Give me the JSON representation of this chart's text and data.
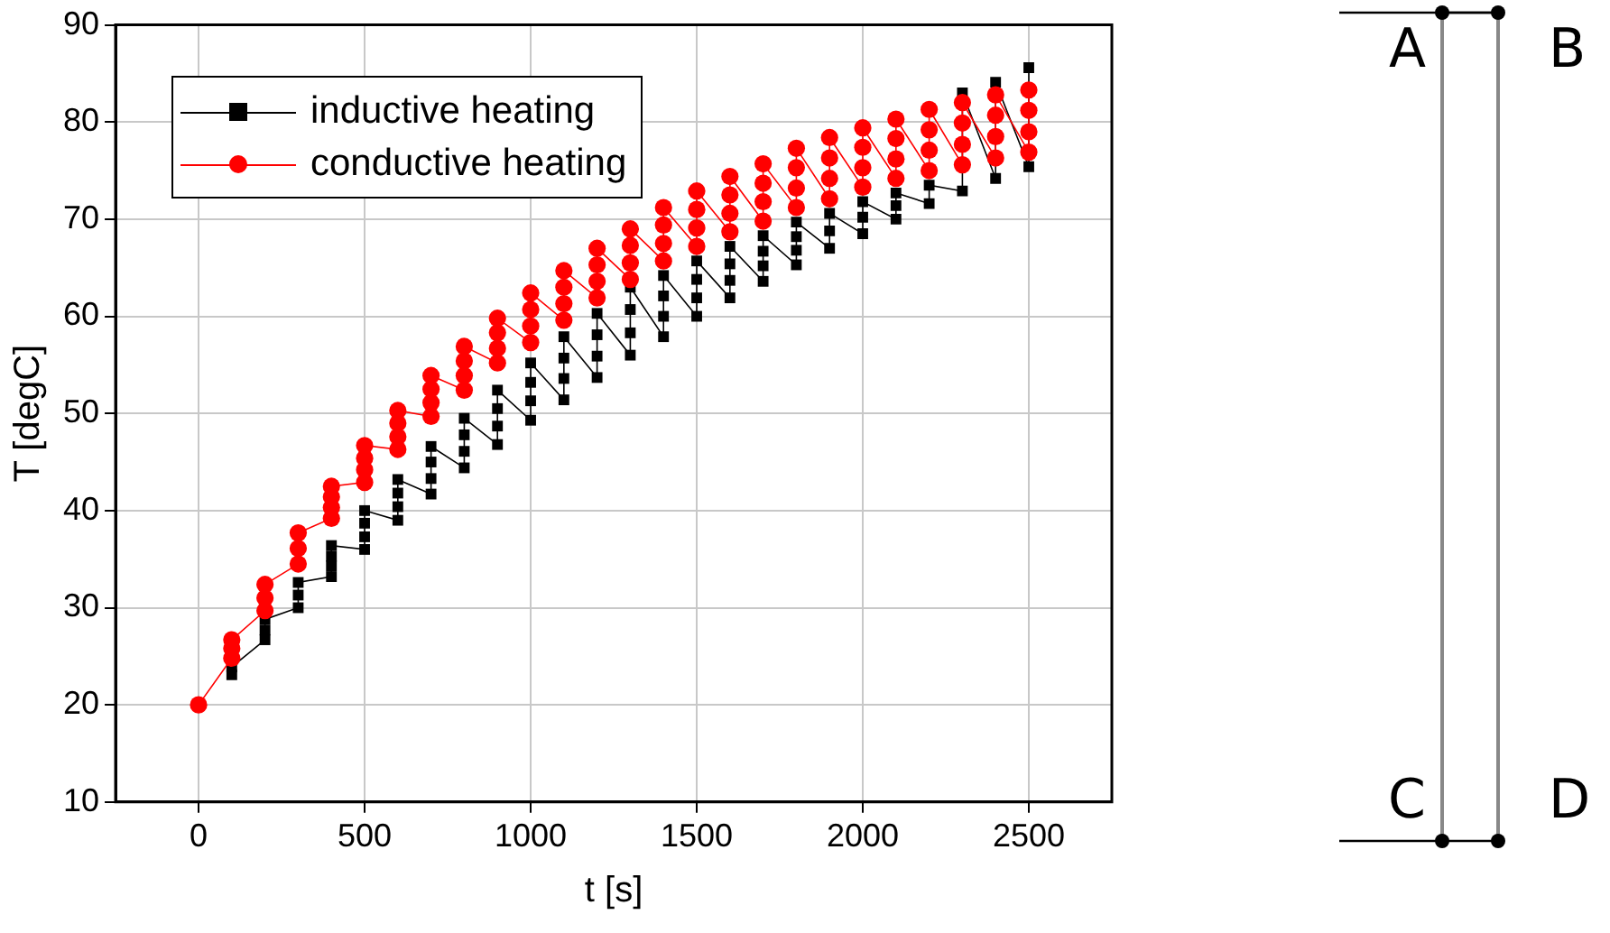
{
  "chart_data": {
    "type": "line",
    "xlabel": "t [s]",
    "ylabel": "T [degC]",
    "xlim": [
      -250,
      2750
    ],
    "xticks": [
      0,
      500,
      1000,
      1500,
      2000,
      2500
    ],
    "ylim": [
      10,
      90
    ],
    "yticks": [
      10,
      20,
      30,
      40,
      50,
      60,
      70,
      80,
      90
    ],
    "grid": true,
    "legend": "top left",
    "line_style": "solid",
    "annotations": [
      "A",
      "B",
      "C",
      "D"
    ],
    "series": [
      {
        "name": "inductive heating",
        "color": "#000000",
        "marker": "square",
        "x": [
          100,
          100,
          200,
          200,
          200,
          300,
          300,
          300,
          400,
          400,
          400,
          400,
          500,
          500,
          500,
          500,
          600,
          600,
          600,
          600,
          700,
          700,
          700,
          700,
          800,
          800,
          800,
          800,
          900,
          900,
          900,
          900,
          1000,
          1000,
          1000,
          1000,
          1100,
          1100,
          1100,
          1100,
          1200,
          1200,
          1200,
          1200,
          1300,
          1300,
          1300,
          1300,
          1400,
          1400,
          1400,
          1400,
          1500,
          1500,
          1500,
          1500,
          1600,
          1600,
          1600,
          1600,
          1700,
          1700,
          1700,
          1700,
          1800,
          1800,
          1800,
          1800,
          1900,
          1900,
          1900,
          2000,
          2000,
          2000,
          2100,
          2100,
          2100,
          2200,
          2200,
          2300,
          2300,
          2400,
          2400,
          2500,
          2500
        ],
        "values": [
          23.1,
          23.9,
          26.7,
          27.7,
          28.8,
          30,
          31.3,
          32.6,
          33.2,
          34.3,
          35.3,
          36.4,
          36,
          37.3,
          38.7,
          40,
          39,
          40.4,
          41.8,
          43.2,
          41.7,
          43.3,
          45,
          46.6,
          44.4,
          46.1,
          47.8,
          49.5,
          46.8,
          48.7,
          50.5,
          52.4,
          49.3,
          51.3,
          53.2,
          55.2,
          51.4,
          53.6,
          55.7,
          57.9,
          53.7,
          55.9,
          58.1,
          60.3,
          56,
          58.3,
          60.7,
          63,
          57.9,
          60,
          62.1,
          64.2,
          60,
          61.9,
          63.8,
          65.7,
          61.9,
          63.7,
          65.4,
          67.2,
          63.6,
          65.2,
          66.7,
          68.3,
          65.3,
          66.8,
          68.2,
          69.7,
          67,
          68.8,
          70.6,
          68.5,
          70.2,
          71.8,
          70,
          71.4,
          72.7,
          71.6,
          73.5,
          72.9,
          83,
          74.2,
          84.1,
          75.4,
          85.6
        ]
      },
      {
        "name": "conductive heating",
        "color": "#ff0000",
        "marker": "circle",
        "x": [
          0,
          100,
          100,
          100,
          200,
          200,
          200,
          300,
          300,
          300,
          400,
          400,
          400,
          400,
          500,
          500,
          500,
          500,
          600,
          600,
          600,
          600,
          700,
          700,
          700,
          700,
          800,
          800,
          800,
          800,
          900,
          900,
          900,
          900,
          1000,
          1000,
          1000,
          1000,
          1100,
          1100,
          1100,
          1100,
          1200,
          1200,
          1200,
          1200,
          1300,
          1300,
          1300,
          1300,
          1400,
          1400,
          1400,
          1400,
          1500,
          1500,
          1500,
          1500,
          1600,
          1600,
          1600,
          1600,
          1700,
          1700,
          1700,
          1700,
          1800,
          1800,
          1800,
          1800,
          1900,
          1900,
          1900,
          1900,
          2000,
          2000,
          2000,
          2000,
          2100,
          2100,
          2100,
          2100,
          2200,
          2200,
          2200,
          2200,
          2300,
          2300,
          2300,
          2300,
          2400,
          2400,
          2400,
          2400,
          2500,
          2500,
          2500,
          2500
        ],
        "values": [
          20,
          24.8,
          25.8,
          26.7,
          29.7,
          31,
          32.4,
          34.5,
          36.1,
          37.7,
          39.2,
          40.3,
          41.4,
          42.5,
          42.9,
          44.2,
          45.4,
          46.7,
          46.3,
          47.6,
          49,
          50.3,
          49.7,
          51.1,
          52.5,
          53.9,
          52.4,
          53.9,
          55.4,
          56.9,
          55.2,
          56.7,
          58.3,
          59.8,
          57.3,
          59,
          60.7,
          62.4,
          59.6,
          61.3,
          63,
          64.7,
          61.9,
          63.6,
          65.3,
          67,
          63.8,
          65.5,
          67.3,
          69,
          65.7,
          67.5,
          69.4,
          71.2,
          67.2,
          69.1,
          71,
          72.9,
          68.7,
          70.6,
          72.5,
          74.4,
          69.8,
          71.8,
          73.7,
          75.7,
          71.2,
          73.2,
          75.3,
          77.3,
          72.1,
          74.2,
          76.3,
          78.4,
          73.3,
          75.3,
          77.4,
          79.4,
          74.2,
          76.2,
          78.3,
          80.3,
          75,
          77.1,
          79.2,
          81.3,
          75.6,
          77.7,
          79.9,
          82,
          76.3,
          78.5,
          80.7,
          82.8,
          76.9,
          79,
          81.2,
          83.3
        ]
      }
    ]
  }
}
